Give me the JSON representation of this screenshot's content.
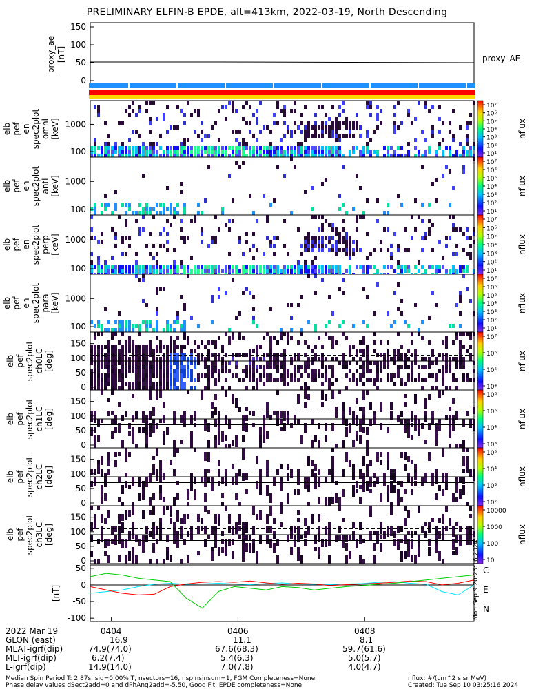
{
  "title": "PRELIMINARY ELFIN-B EPDE, alt=413km, 2022-03-19, North Descending",
  "colors": {
    "bar_blue": "#1e90ff",
    "bar_red": "#ff0000",
    "bar_yellow": "#ffd700",
    "mag_c": "#00e5ff",
    "mag_e": "#ff0000",
    "mag_n": "#00cc00"
  },
  "panels": [
    {
      "ylabel": [
        "proxy_ae",
        "[nT]"
      ],
      "right_label": "proxy_AE",
      "yticks": [
        "150",
        "100",
        "50",
        "0"
      ]
    },
    {
      "ylabel": [
        "elb",
        "pef",
        "en",
        "spec2plot",
        "omni",
        "[keV]"
      ],
      "yticks": [
        "1000",
        "100"
      ],
      "cb_label": "nflux"
    },
    {
      "ylabel": [
        "elb",
        "pef",
        "en",
        "spec2plot",
        "anti",
        "[keV]"
      ],
      "yticks": [
        "1000",
        "100"
      ],
      "cb_label": "nflux"
    },
    {
      "ylabel": [
        "elb",
        "pef",
        "en",
        "spec2plot",
        "perp",
        "[keV]"
      ],
      "yticks": [
        "1000",
        "100"
      ],
      "cb_label": "nflux"
    },
    {
      "ylabel": [
        "elb",
        "pef",
        "en",
        "spec2plot",
        "para",
        "[keV]"
      ],
      "yticks": [
        "1000",
        "100"
      ],
      "cb_label": "nflux"
    },
    {
      "ylabel": [
        "elb",
        "pef",
        "spec2plot",
        "ch0LC",
        "[deg]"
      ],
      "yticks": [
        "150",
        "100",
        "50",
        "0"
      ],
      "cb_label": "nflux"
    },
    {
      "ylabel": [
        "elb",
        "pef",
        "spec2plot",
        "ch1LC",
        "[deg]"
      ],
      "yticks": [
        "150",
        "100",
        "50",
        "0"
      ],
      "cb_label": "nflux"
    },
    {
      "ylabel": [
        "elb",
        "pef",
        "spec2plot",
        "ch2LC",
        "[deg]"
      ],
      "yticks": [
        "150",
        "100",
        "50",
        "0"
      ],
      "cb_label": "nflux"
    },
    {
      "ylabel": [
        "elb",
        "pef",
        "spec2plot",
        "ch3LC",
        "[deg]"
      ],
      "yticks": [
        "150",
        "100",
        "50",
        "0"
      ],
      "cb_label": "nflux"
    },
    {
      "ylabel": [
        "[nT]"
      ],
      "yticks": [
        "50",
        "0",
        "-50",
        "-100"
      ]
    }
  ],
  "colorbars": [
    {
      "ticks": [
        "10⁷",
        "10⁶",
        "10⁵",
        "10⁴",
        "10³",
        "10²",
        "10¹"
      ]
    },
    {
      "ticks": [
        "10⁷",
        "10⁶",
        "10⁵",
        "10⁴",
        "10³",
        "10²",
        "10¹"
      ]
    },
    {
      "ticks": [
        "10⁷",
        "10⁶",
        "10⁵",
        "10⁴",
        "10³",
        "10²",
        "10¹"
      ]
    },
    {
      "ticks": [
        "10⁷",
        "10⁶",
        "10⁵",
        "10⁴",
        "10³",
        "10²",
        "10¹"
      ]
    },
    {
      "ticks": [
        "10⁷",
        "10⁶",
        "10⁵",
        "10⁴"
      ]
    },
    {
      "ticks": [
        "10⁶",
        "10⁵",
        "10⁴",
        "10³"
      ]
    },
    {
      "ticks": [
        "10⁵",
        "10⁴",
        "10³",
        "10²"
      ]
    },
    {
      "ticks": [
        "10000",
        "1000",
        "100",
        "10"
      ]
    }
  ],
  "mag_legend": [
    "C",
    "E",
    "N"
  ],
  "side_stamp": "Mon Sep 9 20:25:16 2024",
  "orbit_rows": [
    {
      "label": "2022 Mar 19",
      "v1": "0404",
      "v2": "0406",
      "v3": "0408"
    },
    {
      "label": "GLON (east)",
      "v1": "16.9",
      "v2": "11.1",
      "v3": "8.1"
    },
    {
      "label": "MLAT-igrf(dip)",
      "v1": "74.9(74.0)",
      "v2": "67.6(68.3)",
      "v3": "59.7(61.6)"
    },
    {
      "label": "MLT-igrf(dip)",
      "v1": "6.2(7.4)",
      "v2": "5.4(6.3)",
      "v3": "5.0(5.7)"
    },
    {
      "label": "L-igrf(dip)",
      "v1": "14.9(14.0)",
      "v2": "7.0(7.8)",
      "v3": "4.0(4.7)"
    }
  ],
  "footer": {
    "line1": "Median Spin Period T: 2.87s, sig=0.00% T, nsectors=16, nspinsinsum=1, FGM Completeness=None",
    "line2": "Phase delay values dSect2add=0 and dPhAng2add=-5.50, Good Fit, EPDE completeness=None",
    "right1": "nflux: #/(cm^2 s sr MeV)",
    "right2": "Created: Tue Sep 10 03:25:16 2024"
  },
  "chart_data": {
    "type": "heatmap",
    "title": "PRELIMINARY ELFIN-B EPDE, alt=413km, 2022-03-19, North Descending",
    "x_ticks": [
      "0404",
      "0406",
      "0408"
    ],
    "proxy_ae": {
      "ylim": [
        0,
        150
      ],
      "y": [
        52,
        52,
        51,
        50
      ]
    },
    "energy_ylim_keV": [
      60,
      7000
    ],
    "pitch_ylim_deg": [
      0,
      180
    ],
    "colorbar_range_nflux": [
      10,
      10000000
    ],
    "mag_ylim_nT": [
      -110,
      60
    ],
    "mag_series": [
      {
        "name": "C",
        "color": "#00e5ff",
        "values": [
          -25,
          -20,
          -15,
          -5,
          2,
          5,
          2,
          3,
          5,
          3,
          1,
          4,
          6,
          3,
          2,
          1,
          3,
          4,
          8,
          10,
          5,
          2,
          -20,
          -30,
          0
        ]
      },
      {
        "name": "E",
        "color": "#ff0000",
        "values": [
          -5,
          -15,
          -25,
          -30,
          -28,
          -5,
          3,
          8,
          10,
          8,
          12,
          6,
          2,
          5,
          3,
          -2,
          1,
          3,
          5,
          8,
          12,
          10,
          0,
          5,
          15
        ]
      },
      {
        "name": "N",
        "color": "#00cc00",
        "values": [
          25,
          35,
          30,
          20,
          15,
          10,
          -40,
          -70,
          -20,
          -5,
          -10,
          -15,
          -5,
          -8,
          -15,
          -10,
          -5,
          -2,
          2,
          5,
          10,
          15,
          20,
          25,
          30
        ]
      }
    ]
  }
}
